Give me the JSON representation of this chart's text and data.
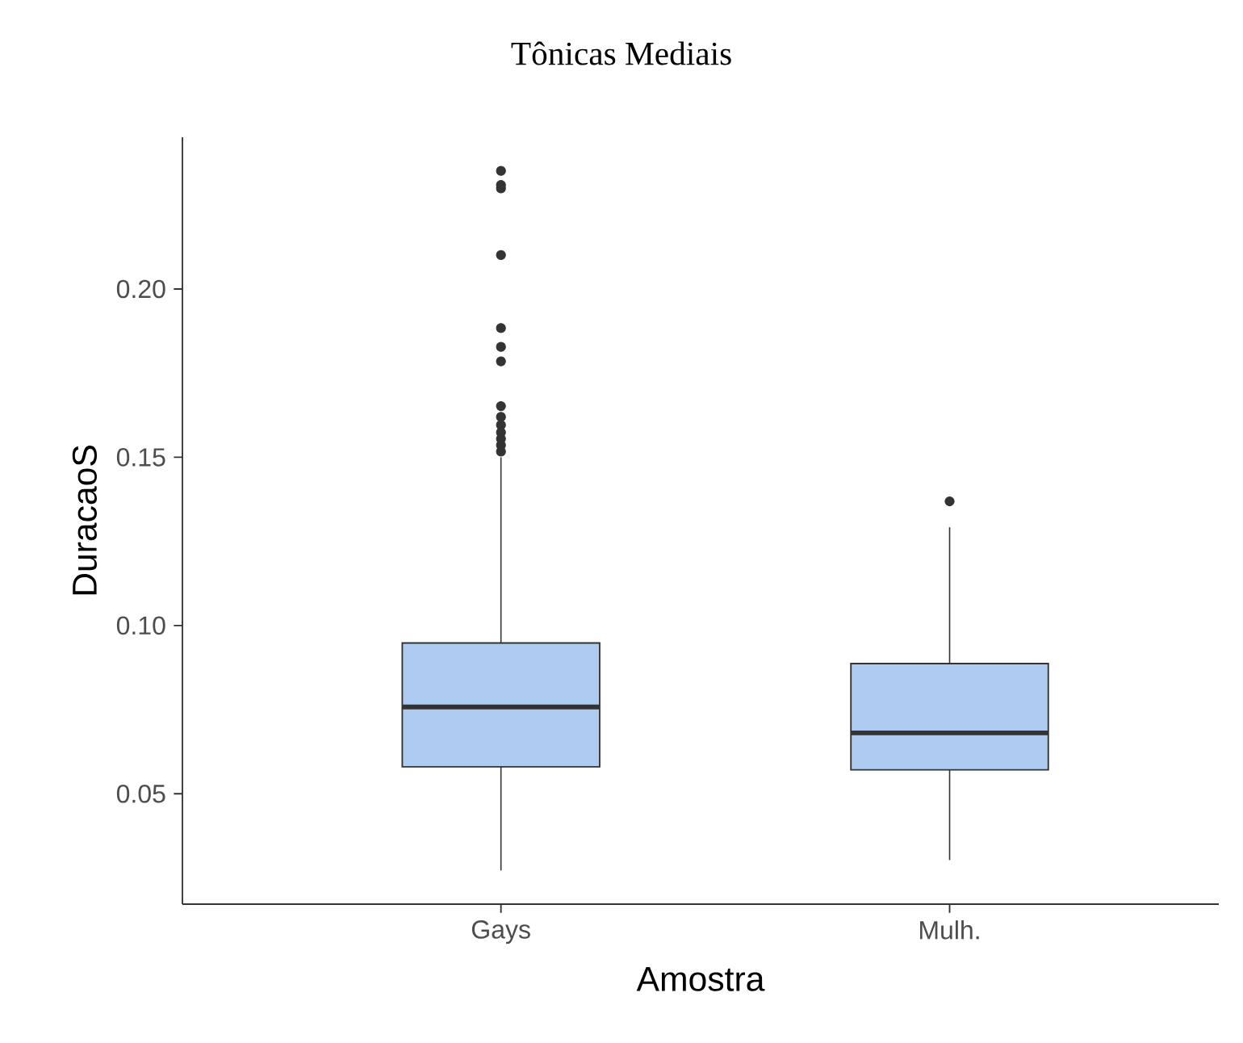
{
  "chart_data": {
    "type": "box",
    "title": "Tônicas Mediais",
    "xlabel": "Amostra",
    "ylabel": "DuracaoS",
    "categories": [
      "Gays",
      "Mulh."
    ],
    "color": "#aecbf1",
    "ylim": [
      0.0172,
      0.2451
    ],
    "yticks": [
      0.05,
      {
        "value": 0.1,
        "label": "0.10"
      },
      0.15,
      {
        "value": 0.2,
        "label": "0.20"
      }
    ],
    "boxes": [
      {
        "low": 0.0272,
        "q1": 0.058,
        "median": 0.0758,
        "q3": 0.0948,
        "high": 0.15,
        "outliers": [
          0.2351,
          0.2309,
          0.2299,
          0.2101,
          0.1884,
          0.1828,
          0.1785,
          0.1652,
          0.162,
          0.1596,
          0.1574,
          0.1555,
          0.1536,
          0.1517
        ]
      },
      {
        "low": 0.0303,
        "q1": 0.0571,
        "median": 0.0681,
        "q3": 0.0887,
        "high": 0.1292,
        "outliers": [
          0.1369
        ]
      }
    ]
  }
}
